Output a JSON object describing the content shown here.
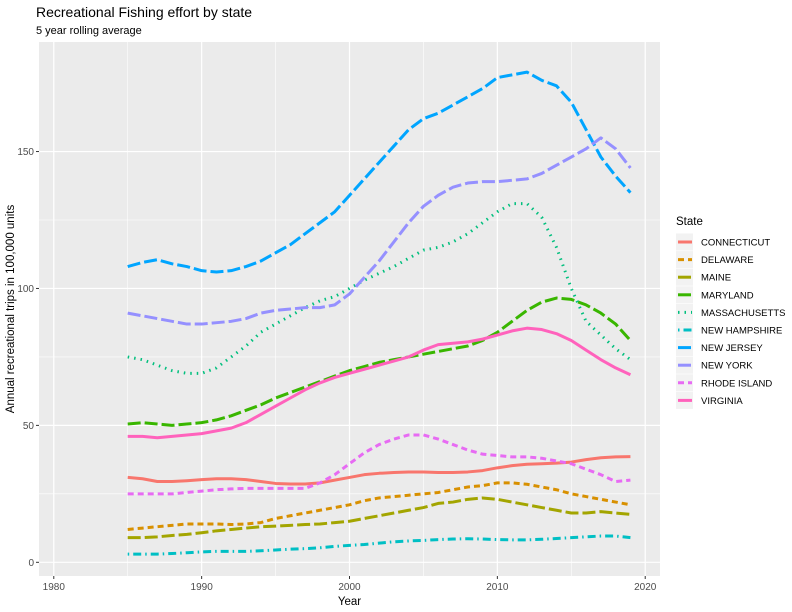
{
  "chart_data": {
    "type": "line",
    "title": "Recreational Fishing effort by state",
    "subtitle": "5 year rolling average",
    "xlabel": "Year",
    "ylabel": "Annual recreational trips in 100,000 units",
    "xlim": [
      1979,
      2021
    ],
    "ylim": [
      -5,
      190
    ],
    "x_ticks": [
      1980,
      1990,
      2000,
      2010,
      2020
    ],
    "y_ticks": [
      0,
      50,
      100,
      150
    ],
    "grid": true,
    "legend_title": "State",
    "legend_position": "right",
    "x": [
      1985,
      1986,
      1987,
      1988,
      1989,
      1990,
      1991,
      1992,
      1993,
      1994,
      1995,
      1996,
      1997,
      1998,
      1999,
      2000,
      2001,
      2002,
      2003,
      2004,
      2005,
      2006,
      2007,
      2008,
      2009,
      2010,
      2011,
      2012,
      2013,
      2014,
      2015,
      2016,
      2017,
      2018,
      2019
    ],
    "series": [
      {
        "name": "CONNECTICUT",
        "color": "#F8766D",
        "dash": "solid",
        "values": [
          31,
          30.5,
          29.5,
          29.5,
          29.8,
          30.2,
          30.5,
          30.5,
          30.2,
          29.5,
          28.8,
          28.6,
          28.6,
          29,
          30,
          31,
          32,
          32.5,
          32.8,
          33,
          33,
          32.8,
          32.8,
          33,
          33.5,
          34.5,
          35.3,
          35.8,
          36,
          36.2,
          36.6,
          37.5,
          38.2,
          38.5,
          38.6
        ]
      },
      {
        "name": "DELAWARE",
        "color": "#D89000",
        "dash": "dashed",
        "values": [
          12,
          12.5,
          13,
          13.5,
          14,
          14,
          14,
          13.8,
          14,
          14.5,
          16,
          17,
          18,
          19,
          20,
          21,
          22.5,
          23.5,
          24,
          24.5,
          25,
          25.5,
          26.5,
          27.5,
          28,
          29,
          29,
          28.5,
          27.5,
          26.5,
          25,
          24,
          23,
          22,
          21
        ]
      },
      {
        "name": "MAINE",
        "color": "#A3A500",
        "dash": "longdash",
        "values": [
          9,
          9,
          9.3,
          9.8,
          10.2,
          10.8,
          11.5,
          12,
          12.5,
          13,
          13.2,
          13.5,
          13.8,
          14,
          14.5,
          15,
          16,
          17,
          18,
          19,
          20,
          21.5,
          22,
          23,
          23.5,
          23,
          22,
          21,
          20,
          19,
          18,
          18,
          18.5,
          18,
          17.5
        ]
      },
      {
        "name": "MARYLAND",
        "color": "#39B600",
        "dash": "longdash",
        "values": [
          50.5,
          51,
          50.5,
          50,
          50.5,
          51,
          52,
          53.5,
          55.5,
          57.5,
          60,
          62,
          64,
          66,
          68,
          70,
          71.5,
          73,
          74,
          75,
          76,
          77,
          78,
          79,
          81,
          84,
          88,
          92,
          95,
          96.5,
          96,
          94,
          91,
          87,
          81
        ]
      },
      {
        "name": "MASSACHUSETTS",
        "color": "#00BF7D",
        "dash": "dotted",
        "values": [
          75,
          74,
          72,
          70,
          69,
          69,
          71,
          75,
          79,
          84,
          87,
          90,
          93,
          95.5,
          97,
          100,
          103,
          105.5,
          108,
          111,
          114,
          115,
          117,
          120,
          124,
          128,
          131,
          131,
          126,
          115,
          100,
          88,
          83,
          78,
          74
        ]
      },
      {
        "name": "NEW HAMPSHIRE",
        "color": "#00BFC4",
        "dash": "dotdash",
        "values": [
          3,
          3,
          3,
          3.2,
          3.5,
          3.8,
          4,
          4,
          4,
          4.2,
          4.5,
          4.8,
          5,
          5.3,
          5.8,
          6.2,
          6.5,
          7,
          7.5,
          7.8,
          8,
          8.3,
          8.5,
          8.6,
          8.5,
          8.3,
          8.2,
          8.2,
          8.4,
          8.7,
          9,
          9.3,
          9.6,
          9.6,
          9
        ]
      },
      {
        "name": "NEW JERSEY",
        "color": "#00A5FF",
        "dash": "longdash",
        "values": [
          108,
          109.5,
          110.5,
          109,
          108,
          106.5,
          106,
          106.5,
          108,
          110,
          113,
          116,
          120,
          124,
          128,
          134,
          140,
          146,
          152,
          158,
          162,
          164,
          167,
          170,
          173,
          177,
          178,
          179,
          176,
          174,
          168,
          158,
          148,
          141,
          135
        ]
      },
      {
        "name": "NEW YORK",
        "color": "#9590FF",
        "dash": "longdash",
        "values": [
          91,
          90,
          89,
          88,
          87,
          87,
          87.5,
          88,
          89,
          91,
          92,
          92.5,
          93,
          93,
          94,
          98,
          104,
          110,
          117,
          124,
          130,
          134,
          137,
          138.5,
          139,
          139,
          139.5,
          140,
          142,
          145,
          148,
          151,
          155,
          151,
          144
        ]
      },
      {
        "name": "RHODE ISLAND",
        "color": "#E76BF3",
        "dash": "dashed",
        "values": [
          25,
          25,
          25,
          25,
          25.5,
          26,
          26.5,
          26.8,
          27,
          27,
          27,
          27,
          27,
          29,
          32,
          36,
          40,
          43,
          45,
          46.5,
          46.5,
          45,
          43,
          41,
          39.5,
          39,
          38.5,
          38.5,
          38,
          37,
          36,
          34,
          32,
          29.5,
          30
        ]
      },
      {
        "name": "VIRGINIA",
        "color": "#FF62BC",
        "dash": "solid",
        "values": [
          46,
          46,
          45.5,
          46,
          46.5,
          47,
          48,
          49,
          51,
          54,
          57,
          60,
          63,
          65.5,
          67.5,
          69,
          70.5,
          72,
          73.5,
          75,
          77.5,
          79.5,
          80,
          80.5,
          81.5,
          83,
          84.5,
          85.5,
          85,
          83.5,
          81,
          77.5,
          74,
          71,
          68.5
        ]
      }
    ]
  }
}
